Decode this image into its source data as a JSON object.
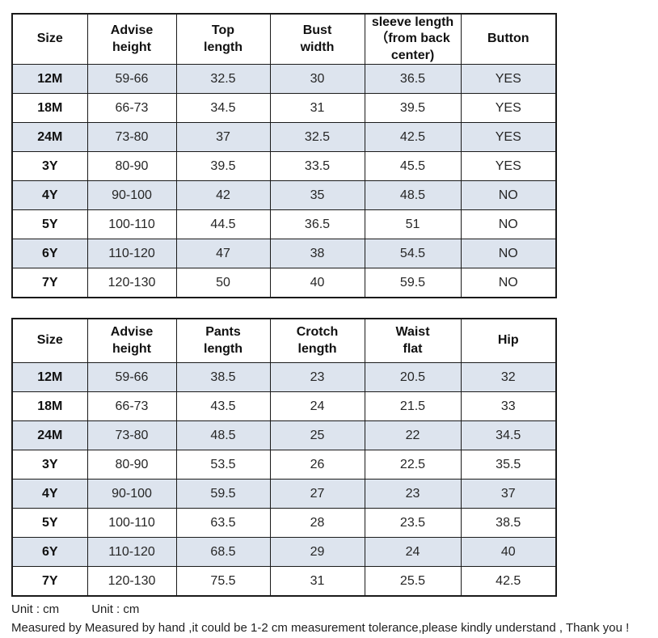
{
  "colors": {
    "stripe_row": "#dde4ee",
    "border": "#1a1a1a",
    "text": "#222222"
  },
  "tables": [
    {
      "name": "top-size-chart",
      "headers": [
        "Size",
        "Advise\nheight",
        "Top\nlength",
        "Bust\nwidth",
        "sleeve length\n（from back\ncenter)",
        "Button"
      ],
      "rows": [
        [
          "12M",
          "59-66",
          "32.5",
          "30",
          "36.5",
          "YES"
        ],
        [
          "18M",
          "66-73",
          "34.5",
          "31",
          "39.5",
          "YES"
        ],
        [
          "24M",
          "73-80",
          "37",
          "32.5",
          "42.5",
          "YES"
        ],
        [
          "3Y",
          "80-90",
          "39.5",
          "33.5",
          "45.5",
          "YES"
        ],
        [
          "4Y",
          "90-100",
          "42",
          "35",
          "48.5",
          "NO"
        ],
        [
          "5Y",
          "100-110",
          "44.5",
          "36.5",
          "51",
          "NO"
        ],
        [
          "6Y",
          "110-120",
          "47",
          "38",
          "54.5",
          "NO"
        ],
        [
          "7Y",
          "120-130",
          "50",
          "40",
          "59.5",
          "NO"
        ]
      ]
    },
    {
      "name": "bottom-size-chart",
      "headers": [
        "Size",
        "Advise\nheight",
        "Pants\nlength",
        "Crotch\nlength",
        "Waist\nflat",
        "Hip"
      ],
      "rows": [
        [
          "12M",
          "59-66",
          "38.5",
          "23",
          "20.5",
          "32"
        ],
        [
          "18M",
          "66-73",
          "43.5",
          "24",
          "21.5",
          "33"
        ],
        [
          "24M",
          "73-80",
          "48.5",
          "25",
          "22",
          "34.5"
        ],
        [
          "3Y",
          "80-90",
          "53.5",
          "26",
          "22.5",
          "35.5"
        ],
        [
          "4Y",
          "90-100",
          "59.5",
          "27",
          "23",
          "37"
        ],
        [
          "5Y",
          "100-110",
          "63.5",
          "28",
          "23.5",
          "38.5"
        ],
        [
          "6Y",
          "110-120",
          "68.5",
          "29",
          "24",
          "40"
        ],
        [
          "7Y",
          "120-130",
          "75.5",
          "31",
          "25.5",
          "42.5"
        ]
      ]
    }
  ],
  "footer": {
    "unit_label_1": "Unit : cm",
    "unit_label_2": "Unit : cm",
    "note": "Measured by Measured by hand ,it could be 1-2 cm measurement tolerance,please kindly understand , Thank you !"
  }
}
